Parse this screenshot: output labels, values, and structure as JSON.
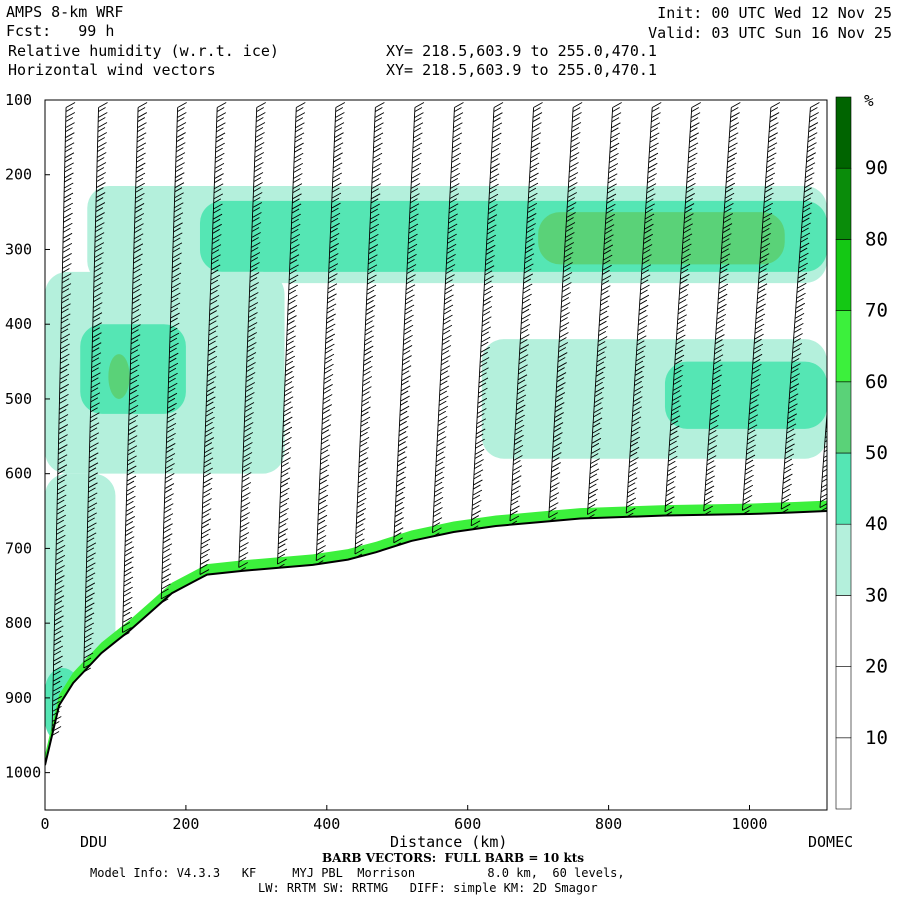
{
  "header": {
    "model": "AMPS 8-km WRF",
    "fcst": "Fcst:   99 h",
    "field1": "Relative humidity (w.r.t. ice)",
    "field2": "Horizontal wind vectors",
    "xy1": "XY= 218.5,603.9 to 255.0,470.1",
    "xy2": "XY= 218.5,603.9 to 255.0,470.1",
    "init": "Init: 00 UTC Wed 12 Nov 25",
    "valid": "Valid: 03 UTC Sun 16 Nov 25"
  },
  "footer": {
    "barb": "BARB VECTORS:  FULL BARB = 10 kts",
    "model_info": "Model Info: V4.3.3   KF     MYJ PBL  Morrison          8.0 km,  60 levels,",
    "physics": "LW: RRTM SW: RRTMG   DIFF: simple KM: 2D Smagor"
  },
  "chart_data": {
    "type": "heatmap",
    "title": "Relative humidity (w.r.t. ice)",
    "xlabel": "Distance (km)",
    "ylabel": "",
    "x_end_labels": [
      "DDU",
      "DOMEC"
    ],
    "xlim": [
      0,
      1110
    ],
    "ylim": [
      1050,
      100
    ],
    "xticks": [
      0,
      200,
      400,
      600,
      800,
      1000
    ],
    "yticks": [
      100,
      200,
      300,
      400,
      500,
      600,
      700,
      800,
      900,
      1000
    ],
    "colorbar": {
      "unit": "%",
      "levels": [
        10,
        20,
        30,
        40,
        50,
        60,
        70,
        80,
        90
      ],
      "colors": [
        "#ffffff",
        "#ffffff",
        "#ffffff",
        "#b4f0dc",
        "#55e6b4",
        "#5ad278",
        "#3cf03c",
        "#14c814",
        "#0a8c0a",
        "#006400"
      ]
    },
    "terrain": {
      "x": [
        0,
        20,
        40,
        60,
        80,
        100,
        120,
        150,
        180,
        210,
        230,
        280,
        330,
        380,
        430,
        470,
        520,
        580,
        640,
        700,
        760,
        820,
        880,
        940,
        1000,
        1060,
        1110
      ],
      "p": [
        990,
        910,
        880,
        860,
        840,
        825,
        810,
        785,
        760,
        745,
        735,
        730,
        726,
        722,
        715,
        705,
        690,
        678,
        670,
        665,
        660,
        658,
        656,
        655,
        654,
        652,
        650
      ]
    },
    "rh_regions": [
      {
        "level": 30,
        "x": [
          60,
          1110
        ],
        "p": [
          215,
          345
        ]
      },
      {
        "level": 40,
        "x": [
          220,
          1110
        ],
        "p": [
          235,
          330
        ]
      },
      {
        "level": 50,
        "x": [
          700,
          1050
        ],
        "p": [
          250,
          320
        ]
      },
      {
        "level": 30,
        "x": [
          0,
          340
        ],
        "p": [
          330,
          600
        ]
      },
      {
        "level": 40,
        "x": [
          50,
          200
        ],
        "p": [
          400,
          520
        ]
      },
      {
        "level": 50,
        "x": [
          90,
          120
        ],
        "p": [
          440,
          500
        ]
      },
      {
        "level": 30,
        "x": [
          620,
          1110
        ],
        "p": [
          420,
          580
        ]
      },
      {
        "level": 40,
        "x": [
          880,
          1110
        ],
        "p": [
          450,
          540
        ]
      },
      {
        "level": 30,
        "x": [
          0,
          100
        ],
        "p": [
          600,
          900
        ]
      },
      {
        "level": 40,
        "x": [
          0,
          50
        ],
        "p": [
          860,
          960
        ]
      }
    ],
    "wind_barbs": {
      "columns_x_km": [
        10,
        55,
        110,
        165,
        220,
        275,
        330,
        385,
        440,
        495,
        550,
        605,
        660,
        715,
        770,
        825,
        880,
        935,
        990,
        1045,
        1100
      ],
      "barb_full_kts": 10
    }
  }
}
